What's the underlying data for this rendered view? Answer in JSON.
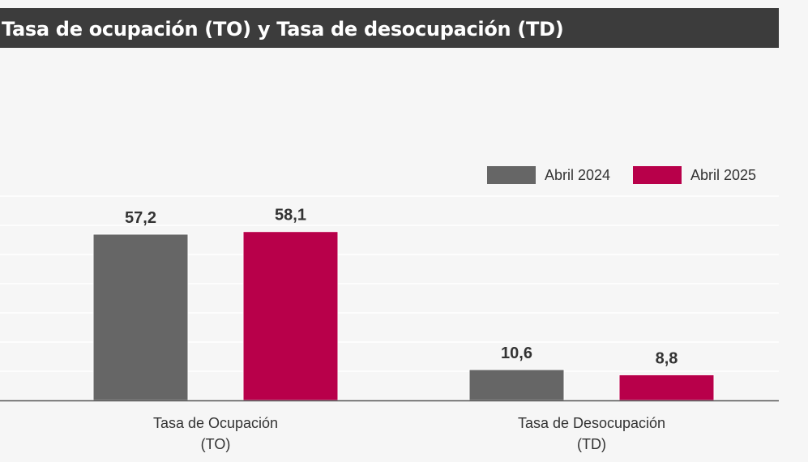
{
  "header": {
    "title": "Tasa de ocupación (TO) y Tasa de desocupación (TD)"
  },
  "colors": {
    "title_bg": "#3c3c3c",
    "series_2024": "#666666",
    "series_2025": "#b8004a",
    "background": "#f6f6f6"
  },
  "chart_data": {
    "type": "bar",
    "categories": [
      [
        "Tasa de Ocupación",
        "(TO)"
      ],
      [
        "Tasa de Desocupación",
        "(TD)"
      ]
    ],
    "series": [
      {
        "name": "Abril 2024",
        "values": [
          57.2,
          10.6
        ],
        "labels": [
          "57,2",
          "10,6"
        ]
      },
      {
        "name": "Abril 2025",
        "values": [
          58.1,
          8.8
        ],
        "labels": [
          "58,1",
          "8,8"
        ]
      }
    ],
    "ylim": [
      0,
      70
    ],
    "grid": true,
    "legend": "top-right",
    "title": "",
    "xlabel": "",
    "ylabel": ""
  }
}
